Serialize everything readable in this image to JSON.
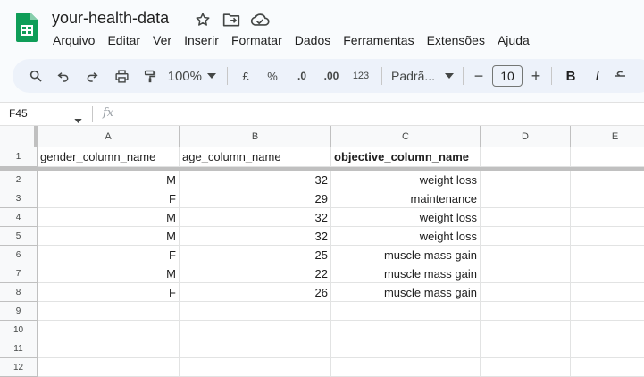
{
  "doc": {
    "title": "your-health-data"
  },
  "menu": [
    "Arquivo",
    "Editar",
    "Ver",
    "Inserir",
    "Formatar",
    "Dados",
    "Ferramentas",
    "Extensões",
    "Ajuda"
  ],
  "toolbar": {
    "zoom": "100%",
    "currency": "£",
    "percent": "%",
    "dec_decrease": ".0",
    "dec_increase": ".00",
    "number_format": "123",
    "font": "Padrã...",
    "minus": "−",
    "font_size": "10",
    "plus": "+",
    "bold": "B",
    "italic": "I"
  },
  "formula_bar": {
    "cell_ref": "F45",
    "fx": "fx"
  },
  "sheet": {
    "columns": [
      "A",
      "B",
      "C",
      "D",
      "E"
    ],
    "rows": [
      "1",
      "2",
      "3",
      "4",
      "5",
      "6",
      "7",
      "8",
      "9",
      "10",
      "11",
      "12"
    ],
    "header": [
      "gender_column_name",
      "age_column_name",
      "objective_column_name"
    ],
    "data": [
      [
        "M",
        "32",
        "weight loss"
      ],
      [
        "F",
        "29",
        "maintenance"
      ],
      [
        "M",
        "32",
        "weight loss"
      ],
      [
        "M",
        "32",
        "weight loss"
      ],
      [
        "F",
        "25",
        "muscle mass gain"
      ],
      [
        "M",
        "22",
        "muscle mass gain"
      ],
      [
        "F",
        "26",
        "muscle mass gain"
      ]
    ]
  },
  "colors": {
    "sheets_green": "#0f9d58",
    "toolbar_bg": "#edf2fa",
    "grid_line": "#e2e3e3"
  }
}
